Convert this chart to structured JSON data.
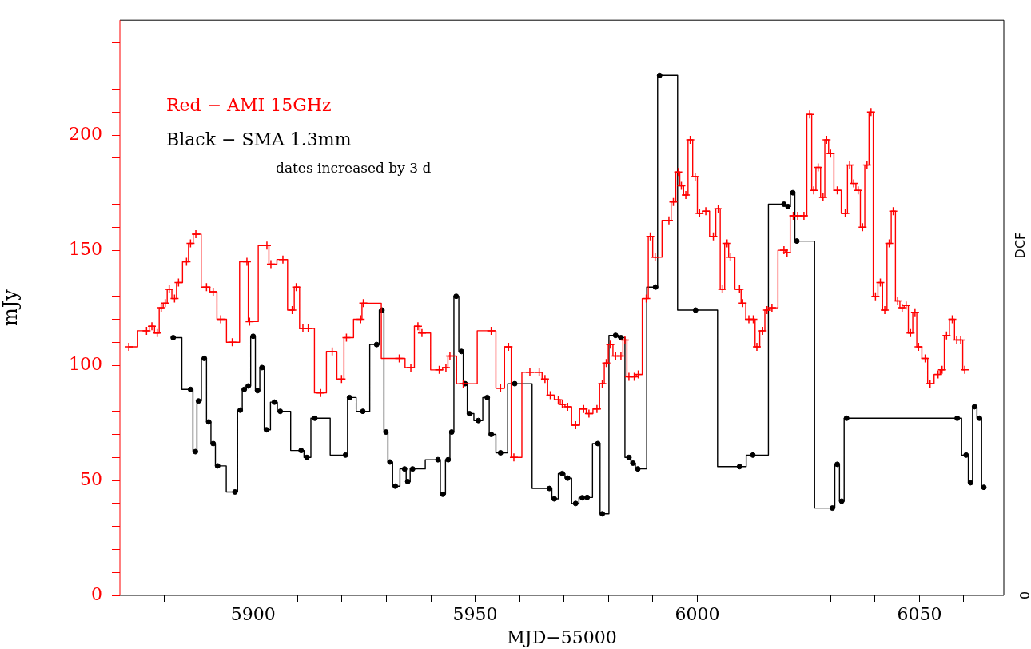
{
  "chart_data": {
    "type": "step",
    "xlabel": "MJD−55000",
    "ylabel": "mJy",
    "y2label": "DCF",
    "legend": "top left",
    "xlim": [
      5870,
      6069
    ],
    "ylim": [
      0,
      250
    ],
    "xticks": [
      {
        "value": 5880,
        "label": null
      },
      {
        "value": 5890,
        "label": null
      },
      5900,
      {
        "value": 5910,
        "label": null
      },
      {
        "value": 5920,
        "label": null
      },
      {
        "value": 5930,
        "label": null
      },
      {
        "value": 5940,
        "label": null
      },
      5950,
      {
        "value": 5960,
        "label": null
      },
      {
        "value": 5970,
        "label": null
      },
      {
        "value": 5980,
        "label": null
      },
      {
        "value": 5990,
        "label": null
      },
      6000,
      {
        "value": 6010,
        "label": null
      },
      {
        "value": 6020,
        "label": null
      },
      {
        "value": 6030,
        "label": null
      },
      {
        "value": 6040,
        "label": null
      },
      6050,
      {
        "value": 6060,
        "label": null
      }
    ],
    "yticks": [
      0,
      {
        "value": 10,
        "label": null
      },
      {
        "value": 20,
        "label": null
      },
      {
        "value": 30,
        "label": null
      },
      {
        "value": 40,
        "label": null
      },
      50,
      {
        "value": 60,
        "label": null
      },
      {
        "value": 70,
        "label": null
      },
      {
        "value": 80,
        "label": null
      },
      {
        "value": 90,
        "label": null
      },
      100,
      {
        "value": 110,
        "label": null
      },
      {
        "value": 120,
        "label": null
      },
      {
        "value": 130,
        "label": null
      },
      {
        "value": 140,
        "label": null
      },
      150,
      {
        "value": 160,
        "label": null
      },
      {
        "value": 170,
        "label": null
      },
      {
        "value": 180,
        "label": null
      },
      {
        "value": 190,
        "label": null
      },
      200,
      {
        "value": 210,
        "label": null
      },
      {
        "value": 220,
        "label": null
      },
      {
        "value": 230,
        "label": null
      },
      {
        "value": 240,
        "label": null
      }
    ],
    "annotations": [
      "dates increased by 3 d",
      "0"
    ],
    "series": [
      {
        "name": "Red − AMI 15GHz",
        "color": "#ff0000",
        "marker": "cross",
        "x": [
          5872,
          5876,
          5877.2,
          5878.4,
          5879.3,
          5880.2,
          5881.1,
          5882.3,
          5883.2,
          5885,
          5885.9,
          5887.1,
          5889.5,
          5891,
          5892.7,
          5895.3,
          5898.6,
          5899.2,
          5903.1,
          5904,
          5906.7,
          5908.8,
          5909.7,
          5911.2,
          5912.4,
          5915.2,
          5917.8,
          5919.9,
          5921,
          5924.2,
          5924.8,
          5932.9,
          5935.5,
          5937.1,
          5938,
          5941.9,
          5943.4,
          5944.3,
          5947.3,
          5953.6,
          5955.7,
          5957.5,
          5958.7,
          5962.3,
          5964.4,
          5965.7,
          5966.9,
          5968.7,
          5969.6,
          5970.8,
          5972.6,
          5974.4,
          5975.6,
          5977.4,
          5978.6,
          5979.5,
          5980.4,
          5981.6,
          5982.8,
          5983.7,
          5984.6,
          5985.8,
          5986.7,
          5988.5,
          5989.4,
          5990.5,
          5993.6,
          5994.6,
          5995.7,
          5996.4,
          5997.4,
          5998.4,
          5999.5,
          6000.5,
          6001.9,
          6003.6,
          6004.7,
          6005.6,
          6006.7,
          6007.4,
          6009.5,
          6010.2,
          6011.6,
          6012.6,
          6013.4,
          6014.7,
          6015.7,
          6016.8,
          6019.5,
          6020.2,
          6021.6,
          6022.6,
          6024,
          6025.3,
          6026.2,
          6027.2,
          6028.3,
          6029.1,
          6030,
          6031.5,
          6033.3,
          6034.3,
          6035.2,
          6036.2,
          6037.2,
          6038.2,
          6039.1,
          6040.1,
          6041.2,
          6042.2,
          6043.2,
          6044.1,
          6045.1,
          6046.1,
          6047,
          6048,
          6049,
          6049.8,
          6051.3,
          6052.4,
          6054.2,
          6055.1,
          6056.1,
          6057.4,
          6058.4,
          6059.3,
          6060.2
        ],
        "values": [
          108,
          115,
          117,
          114,
          125,
          127,
          133,
          129,
          136,
          145,
          153,
          157,
          134,
          132,
          120,
          110,
          145,
          119,
          152,
          144,
          146,
          124,
          134,
          116,
          116,
          88,
          106,
          94,
          112,
          120,
          127,
          103,
          99,
          117,
          114,
          98,
          99,
          104,
          92,
          115,
          90,
          108,
          60,
          97,
          97,
          94,
          87,
          85,
          83,
          82,
          74,
          81,
          79,
          81,
          92,
          101,
          109,
          104,
          104,
          111,
          95,
          95,
          96,
          129,
          156,
          147,
          163,
          171,
          184,
          178,
          174,
          198,
          182,
          166,
          167,
          156,
          168,
          133,
          153,
          147,
          133,
          127,
          120,
          120,
          108,
          115,
          124,
          125,
          150,
          149,
          165,
          165,
          165,
          209,
          176,
          186,
          173,
          198,
          192,
          176,
          166,
          187,
          179,
          176,
          160,
          187,
          210,
          130,
          136,
          124,
          153,
          167,
          128,
          125,
          126,
          114,
          123,
          108,
          103,
          92,
          96,
          98,
          113,
          120,
          111,
          111,
          98
        ]
      },
      {
        "name": "Black − SMA 1.3mm",
        "color": "#000000",
        "marker": "circle",
        "x": [
          5882,
          5885.9,
          5887,
          5887.7,
          5889,
          5890,
          5891,
          5892,
          5895.9,
          5897.1,
          5898,
          5898.9,
          5900,
          5901,
          5902,
          5903,
          5904.8,
          5906.1,
          5910.8,
          5912.1,
          5913.9,
          5920.8,
          5921.7,
          5924.7,
          5927.8,
          5929,
          5929.9,
          5930.8,
          5932,
          5934.1,
          5934.8,
          5935.9,
          5941.6,
          5942.7,
          5943.9,
          5944.7,
          5945.7,
          5946.9,
          5947.7,
          5948.7,
          5950.7,
          5952.7,
          5953.6,
          5955.7,
          5958.9,
          5966.7,
          5967.8,
          5969.6,
          5970.8,
          5972.6,
          5974.1,
          5975.2,
          5977.6,
          5978.6,
          5981.6,
          5982.8,
          5984.6,
          5985.5,
          5986.6,
          5990.6,
          5991.5,
          5999.6,
          6009.5,
          6012.5,
          6019.5,
          6020.4,
          6021.5,
          6022.4,
          6030.4,
          6031.5,
          6032.5,
          6033.6,
          6058.5,
          6060.5,
          6061.5,
          6062.4,
          6063.5,
          6064.5
        ],
        "values": [
          112,
          89.5,
          62.5,
          84.5,
          103,
          75.4,
          66,
          56.3,
          45,
          80.5,
          89.5,
          91,
          112.6,
          89,
          99,
          72,
          84,
          80,
          63,
          60,
          77,
          61,
          86,
          80,
          109,
          124,
          71,
          58,
          47.5,
          55,
          49.5,
          55,
          59,
          44,
          59,
          71,
          130,
          106,
          92,
          79,
          76,
          86,
          70,
          62,
          92,
          46.5,
          42,
          53,
          51,
          40,
          42.5,
          42.6,
          66,
          35.5,
          113,
          112,
          60,
          57.5,
          55,
          134,
          226,
          124,
          56,
          61,
          170,
          169,
          175,
          154,
          38,
          57,
          41,
          77,
          77,
          61,
          49,
          82,
          77,
          47
        ]
      }
    ]
  }
}
